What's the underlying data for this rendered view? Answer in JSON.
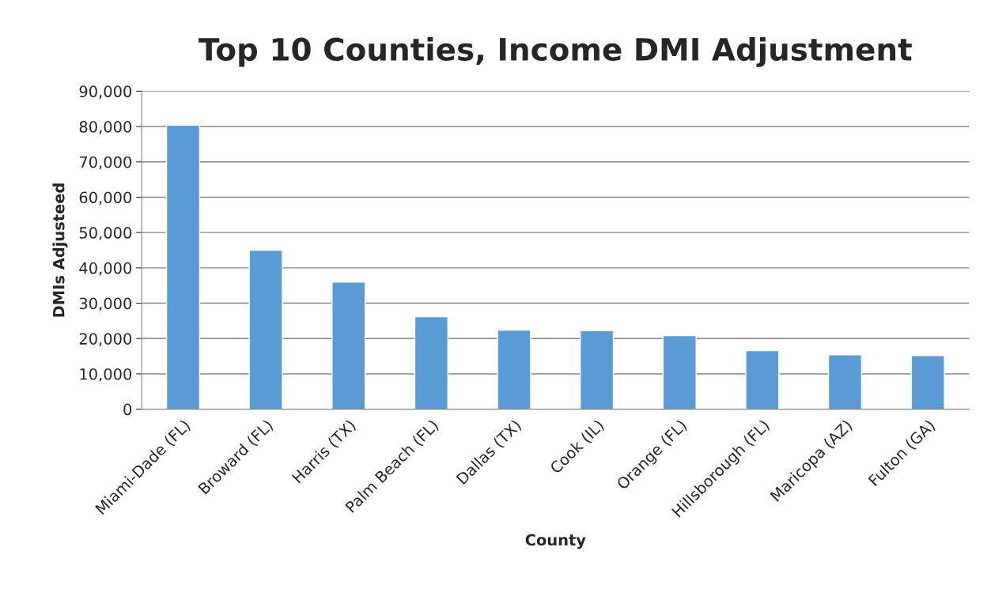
{
  "chart_data": {
    "type": "bar",
    "title": "Top 10 Counties, Income DMI Adjustment",
    "xlabel": "County",
    "ylabel": "DMIs Adjusteed",
    "categories": [
      "Miami-Dade (FL)",
      "Broward (FL)",
      "Harris (TX)",
      "Palm Beach (FL)",
      "Dallas (TX)",
      "Cook (IL)",
      "Orange (FL)",
      "Hillsborough (FL)",
      "Maricopa (AZ)",
      "Fulton (GA)"
    ],
    "values": [
      80400,
      45000,
      36000,
      26200,
      22400,
      22200,
      20800,
      16600,
      15400,
      15200
    ],
    "color": "#5b9bd5",
    "ylim": [
      0,
      90000
    ],
    "yticks": [
      {
        "value": 0,
        "label": "0"
      },
      {
        "value": 10000,
        "label": "10,000"
      },
      {
        "value": 20000,
        "label": "20,000"
      },
      {
        "value": 30000,
        "label": "30,000"
      },
      {
        "value": 40000,
        "label": "40,000"
      },
      {
        "value": 50000,
        "label": "50,000"
      },
      {
        "value": 60000,
        "label": "60,000"
      },
      {
        "value": 70000,
        "label": "70,000"
      },
      {
        "value": 80000,
        "label": "80,000"
      },
      {
        "value": 90000,
        "label": "90,000"
      }
    ],
    "grid": "y",
    "legend": false
  }
}
